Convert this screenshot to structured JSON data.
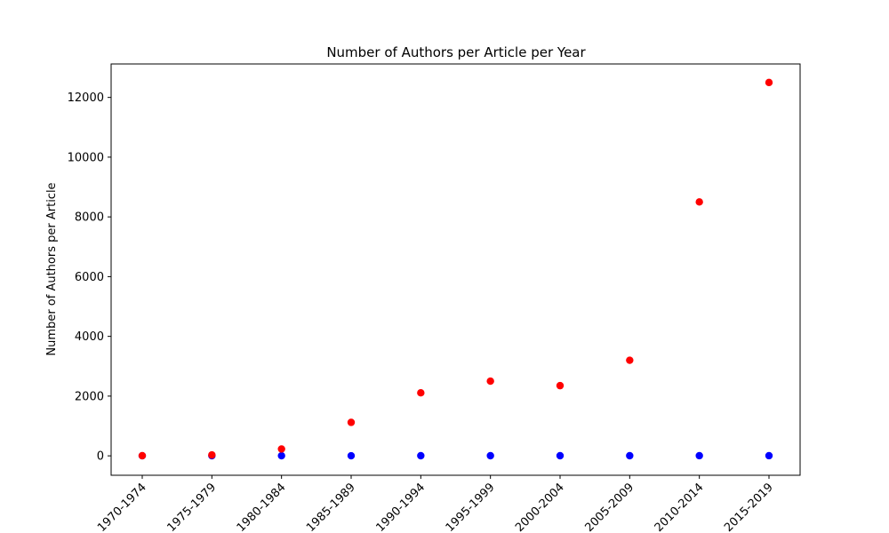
{
  "chart_data": {
    "type": "scatter",
    "title": "Number of Authors per Article per Year",
    "xlabel": "",
    "ylabel": "Number of Authors per Article",
    "categories": [
      "1970-1974",
      "1975-1979",
      "1980-1984",
      "1985-1989",
      "1990-1994",
      "1995-1999",
      "2000-2004",
      "2005-2009",
      "2010-2014",
      "2015-2019"
    ],
    "ylim": [
      -650,
      13120
    ],
    "yticks": [
      0,
      2000,
      4000,
      6000,
      8000,
      10000,
      12000
    ],
    "grid": false,
    "legend": "none",
    "series": [
      {
        "color": "#0000ff",
        "values": [
          2,
          3,
          3,
          3,
          4,
          4,
          4,
          4,
          5,
          5
        ]
      },
      {
        "color": "#ff0000",
        "values": [
          5,
          30,
          230,
          1120,
          2110,
          2500,
          2350,
          3200,
          8500,
          12500
        ]
      }
    ]
  }
}
